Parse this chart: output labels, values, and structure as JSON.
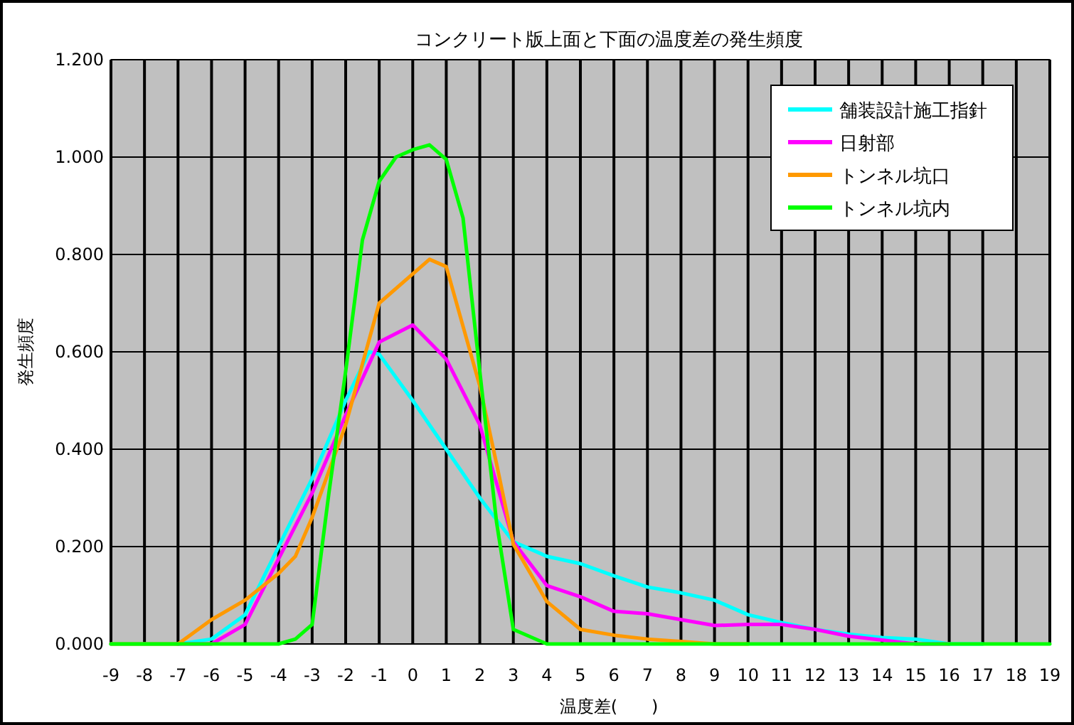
{
  "chart_data": {
    "type": "line",
    "title": "コンクリート版上面と下面の温度差の発生頻度",
    "xlabel": "温度差(　　)",
    "ylabel": "発生頻度",
    "xlim": [
      -9,
      19
    ],
    "ylim": [
      0,
      1.2
    ],
    "xticks": [
      -9,
      -8,
      -7,
      -6,
      -5,
      -4,
      -3,
      -2,
      -1,
      0,
      1,
      2,
      3,
      4,
      5,
      6,
      7,
      8,
      9,
      10,
      11,
      12,
      13,
      14,
      15,
      16,
      17,
      18,
      19
    ],
    "yticks": [
      {
        "value": 0,
        "label": "0.000"
      },
      {
        "value": 0.2,
        "label": "0.200"
      },
      {
        "value": 0.4,
        "label": "0.400"
      },
      {
        "value": 0.6,
        "label": "0.600"
      },
      {
        "value": 0.8,
        "label": "0.800"
      },
      {
        "value": 1.0,
        "label": "1.000"
      },
      {
        "value": 1.2,
        "label": "1.200"
      }
    ],
    "grid": true,
    "legend": "top right",
    "marker": "none",
    "line_style": "solid",
    "series": [
      {
        "name": "舗装設計施工指針",
        "color": "#00ffff",
        "x": [
          -9,
          -8,
          -7,
          -6,
          -5,
          -4,
          -3,
          -2,
          -1.3,
          -1,
          0,
          1,
          2,
          3,
          4,
          5,
          6,
          7,
          8,
          9,
          10,
          11,
          12,
          13,
          14,
          15,
          16,
          17
        ],
        "values": [
          0,
          0,
          0,
          0.01,
          0.06,
          0.2,
          0.34,
          0.5,
          0.6,
          0.595,
          0.5,
          0.4,
          0.3,
          0.21,
          0.18,
          0.165,
          0.14,
          0.117,
          0.105,
          0.09,
          0.06,
          0.044,
          0.03,
          0.02,
          0.013,
          0.01,
          0,
          0
        ]
      },
      {
        "name": "日射部",
        "color": "#ff00ff",
        "x": [
          -7,
          -6,
          -5,
          -4,
          -3,
          -2,
          -1,
          0,
          1,
          2,
          3,
          4,
          5,
          6,
          7,
          8,
          9,
          10,
          11,
          12,
          13,
          14,
          15,
          16
        ],
        "values": [
          0,
          0,
          0.04,
          0.175,
          0.31,
          0.47,
          0.62,
          0.655,
          0.585,
          0.45,
          0.21,
          0.12,
          0.097,
          0.067,
          0.062,
          0.05,
          0.038,
          0.04,
          0.04,
          0.03,
          0.016,
          0.008,
          0,
          0
        ]
      },
      {
        "name": "トンネル坑口",
        "color": "#ff9900",
        "x": [
          -9,
          -8,
          -7,
          -6,
          -5,
          -4,
          -3.5,
          -3,
          -2,
          -1,
          0,
          0.5,
          1,
          2,
          2.5,
          3,
          4,
          5,
          6,
          7,
          8,
          9,
          10
        ],
        "values": [
          0,
          0,
          0,
          0.05,
          0.09,
          0.145,
          0.18,
          0.26,
          0.45,
          0.7,
          0.76,
          0.79,
          0.775,
          0.53,
          0.37,
          0.205,
          0.087,
          0.03,
          0.018,
          0.01,
          0.005,
          0,
          0
        ]
      },
      {
        "name": "トンネル坑内",
        "color": "#00ff00",
        "x": [
          -9,
          -8,
          -7,
          -6,
          -5,
          -4,
          -3.5,
          -3,
          -2.5,
          -2,
          -1.5,
          -1,
          -0.5,
          0,
          0.5,
          1,
          1.5,
          2,
          2.5,
          3,
          4,
          5,
          6,
          7,
          8,
          9,
          10,
          11,
          12,
          13,
          14,
          15,
          16,
          17,
          18,
          19
        ],
        "values": [
          0,
          0,
          0,
          0,
          0,
          0,
          0.01,
          0.04,
          0.31,
          0.56,
          0.83,
          0.95,
          1.0,
          1.015,
          1.025,
          0.995,
          0.875,
          0.56,
          0.25,
          0.03,
          0,
          0,
          0,
          0,
          0,
          0,
          0,
          0,
          0,
          0,
          0,
          0,
          0,
          0,
          0,
          0
        ]
      }
    ]
  }
}
